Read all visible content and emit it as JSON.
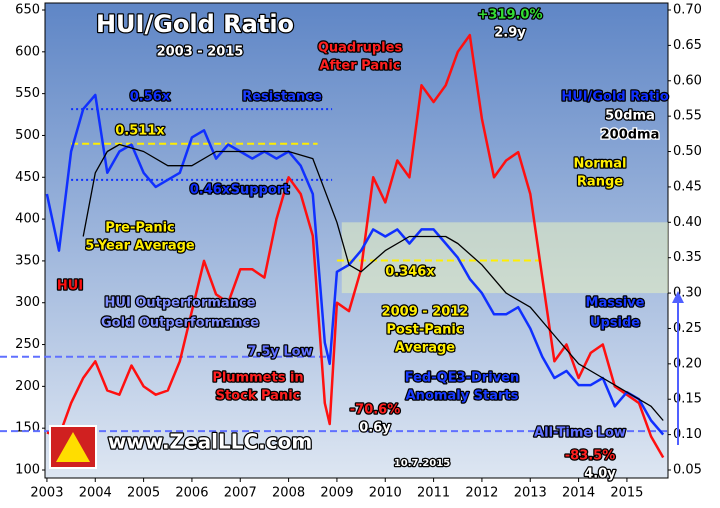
{
  "chart_data": {
    "type": "line",
    "title": "HUI/Gold Ratio",
    "subtitle": "2003 - 2015",
    "xlim": [
      2002.96,
      2015.85
    ],
    "xticks": [
      2003,
      2004,
      2005,
      2006,
      2007,
      2008,
      2009,
      2010,
      2011,
      2012,
      2013,
      2014,
      2015
    ],
    "ylim": [
      100,
      650
    ],
    "yticks": [
      100,
      150,
      200,
      250,
      300,
      350,
      400,
      450,
      500,
      550,
      600,
      650
    ],
    "y2lim": [
      0.05,
      0.7
    ],
    "y2ticks": [
      {
        "value": 0.05,
        "label": "0.05"
      },
      {
        "value": 0.1,
        "label": "0.10"
      },
      {
        "value": 0.15,
        "label": "0.15"
      },
      {
        "value": 0.2,
        "label": "0.20"
      },
      {
        "value": 0.25,
        "label": "0.25"
      },
      {
        "value": 0.3,
        "label": "0.30"
      },
      {
        "value": 0.35,
        "label": "0.35"
      },
      {
        "value": 0.4,
        "label": "0.40"
      },
      {
        "value": 0.45,
        "label": "0.45"
      },
      {
        "value": 0.5,
        "label": "0.50"
      },
      {
        "value": 0.55,
        "label": "0.55"
      },
      {
        "value": 0.6,
        "label": "0.60"
      },
      {
        "value": 0.65,
        "label": "0.65"
      },
      {
        "value": 0.7,
        "label": "0.70"
      }
    ],
    "normal_range": [
      0.3,
      0.4
    ],
    "series": [
      {
        "name": "HUI",
        "color": "#ff1010",
        "x": [
          2003,
          2003.25,
          2003.5,
          2003.75,
          2004,
          2004.25,
          2004.5,
          2004.75,
          2005,
          2005.25,
          2005.5,
          2005.75,
          2006,
          2006.25,
          2006.5,
          2006.75,
          2007,
          2007.25,
          2007.5,
          2007.75,
          2008,
          2008.25,
          2008.5,
          2008.75,
          2008.85,
          2009,
          2009.25,
          2009.5,
          2009.75,
          2010,
          2010.25,
          2010.5,
          2010.75,
          2011,
          2011.25,
          2011.5,
          2011.75,
          2012,
          2012.25,
          2012.5,
          2012.75,
          2013,
          2013.25,
          2013.5,
          2013.75,
          2014,
          2014.25,
          2014.5,
          2014.75,
          2015,
          2015.25,
          2015.5,
          2015.75
        ],
        "values": [
          145,
          140,
          180,
          210,
          230,
          195,
          190,
          225,
          200,
          190,
          195,
          230,
          290,
          350,
          310,
          300,
          340,
          340,
          330,
          400,
          450,
          430,
          380,
          180,
          155,
          300,
          290,
          340,
          450,
          420,
          470,
          450,
          560,
          540,
          560,
          600,
          620,
          520,
          450,
          470,
          480,
          430,
          330,
          230,
          250,
          210,
          240,
          250,
          200,
          190,
          180,
          140,
          115
        ]
      },
      {
        "name": "HUI/Gold Ratio",
        "color": "#1030ff",
        "axis": "y2",
        "x": [
          2003,
          2003.25,
          2003.5,
          2003.75,
          2004,
          2004.25,
          2004.5,
          2004.75,
          2005,
          2005.25,
          2005.5,
          2005.75,
          2006,
          2006.25,
          2006.5,
          2006.75,
          2007,
          2007.25,
          2007.5,
          2007.75,
          2008,
          2008.25,
          2008.5,
          2008.75,
          2008.85,
          2009,
          2009.25,
          2009.5,
          2009.75,
          2010,
          2010.25,
          2010.5,
          2010.75,
          2011,
          2011.25,
          2011.5,
          2011.75,
          2012,
          2012.25,
          2012.5,
          2012.75,
          2013,
          2013.25,
          2013.5,
          2013.75,
          2014,
          2014.25,
          2014.5,
          2014.75,
          2015,
          2015.25,
          2015.5,
          2015.75
        ],
        "values": [
          0.44,
          0.36,
          0.5,
          0.56,
          0.58,
          0.47,
          0.5,
          0.51,
          0.47,
          0.45,
          0.46,
          0.47,
          0.52,
          0.53,
          0.49,
          0.51,
          0.5,
          0.49,
          0.5,
          0.49,
          0.5,
          0.48,
          0.44,
          0.23,
          0.2,
          0.33,
          0.34,
          0.36,
          0.39,
          0.38,
          0.39,
          0.37,
          0.39,
          0.39,
          0.37,
          0.35,
          0.32,
          0.3,
          0.27,
          0.27,
          0.28,
          0.25,
          0.21,
          0.18,
          0.19,
          0.17,
          0.17,
          0.18,
          0.14,
          0.16,
          0.15,
          0.12,
          0.1
        ]
      },
      {
        "name": "200dma",
        "color": "#000000",
        "axis": "y2",
        "x": [
          2003.75,
          2004,
          2004.25,
          2004.5,
          2005,
          2005.5,
          2006,
          2006.5,
          2007,
          2007.5,
          2008,
          2008.5,
          2009,
          2009.25,
          2009.5,
          2010,
          2010.5,
          2011,
          2011.25,
          2011.5,
          2012,
          2012.5,
          2013,
          2013.5,
          2014,
          2014.5,
          2015,
          2015.5,
          2015.75
        ],
        "values": [
          0.38,
          0.47,
          0.5,
          0.51,
          0.5,
          0.48,
          0.48,
          0.5,
          0.5,
          0.5,
          0.5,
          0.49,
          0.4,
          0.34,
          0.33,
          0.36,
          0.38,
          0.38,
          0.38,
          0.37,
          0.34,
          0.3,
          0.28,
          0.24,
          0.2,
          0.18,
          0.16,
          0.14,
          0.12
        ]
      }
    ],
    "reference_lines": [
      {
        "value": 0.56,
        "label": "0.56x",
        "color": "#1030ff",
        "from": 2003.5,
        "to": 2008.9
      },
      {
        "value": 0.511,
        "label": "0.511x",
        "color": "#ffee00",
        "from": 2003.5,
        "to": 2008.6
      },
      {
        "value": 0.46,
        "label": "0.46x",
        "color": "#1030ff",
        "from": 2003.5,
        "to": 2008.9
      },
      {
        "value": 0.346,
        "label": "0.346x",
        "color": "#ffee00",
        "from": 2009,
        "to": 2013.2
      },
      {
        "value": 0.21,
        "label": "7.5y Low",
        "color": "#6070ff",
        "from": 2002.96,
        "to": 2008.8
      },
      {
        "value": 0.105,
        "label": "All-Time Low",
        "color": "#6070ff",
        "from": 2002.96,
        "to": 2015.85
      }
    ],
    "annotations": [
      "Quadruples",
      "After Panic",
      "+319.0%",
      "2.9y",
      "Resistance",
      "Support",
      "Pre-Panic",
      "5-Year Average",
      "50dma",
      "Normal",
      "Range",
      "HUI Outperformance",
      "Gold Outperformance",
      "2009 - 2012",
      "Post-Panic",
      "Average",
      "Massive",
      "Upside",
      "Plummets in",
      "Stock Panic",
      "Fed-QE3-Driven",
      "Anomaly Starts",
      "-70.6%",
      "0.6y",
      "-83.5%",
      "4.0y",
      "www.ZealLLC.com",
      "10.7.2015"
    ]
  }
}
